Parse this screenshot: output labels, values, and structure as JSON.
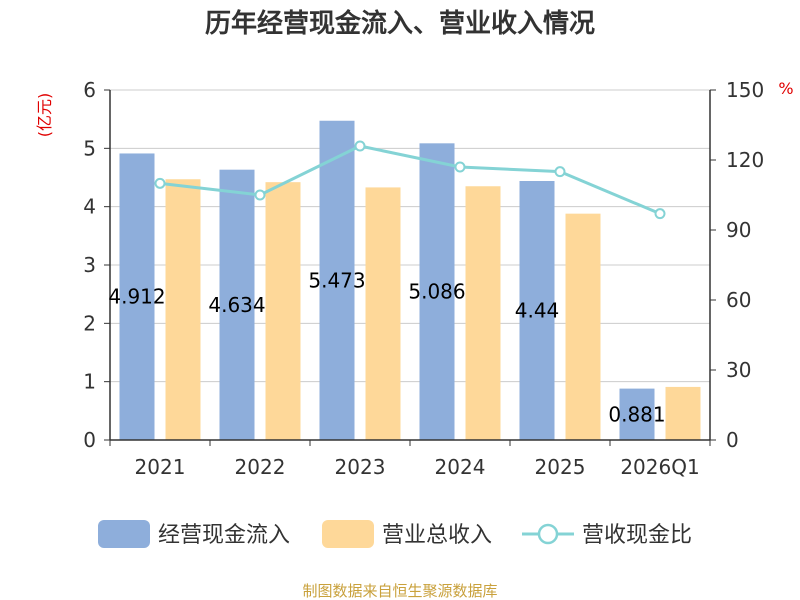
{
  "chart_data": {
    "type": "bar",
    "title": "历年经营现金流入、营业收入情况",
    "categories": [
      "2021",
      "2022",
      "2023",
      "2024",
      "2025",
      "2026Q1"
    ],
    "left_axis": {
      "unit": "(亿元)",
      "ylim": [
        0,
        6
      ],
      "ticks": [
        "0",
        "1",
        "2",
        "3",
        "4",
        "5",
        "6"
      ]
    },
    "right_axis": {
      "unit": "%",
      "ylim": [
        0,
        150
      ],
      "ticks": [
        "0",
        "30",
        "60",
        "90",
        "120",
        "150"
      ]
    },
    "series": [
      {
        "name": "经营现金流入",
        "type": "bar",
        "axis": "left",
        "color": "#8eaedb",
        "values": [
          4.912,
          4.634,
          5.473,
          5.086,
          4.44,
          0.881
        ],
        "labels": [
          "4.912",
          "4.634",
          "5.473",
          "5.086",
          "4.44",
          "0.881"
        ]
      },
      {
        "name": "营业总收入",
        "type": "bar",
        "axis": "left",
        "color": "#fed899",
        "values": [
          4.47,
          4.42,
          4.33,
          4.35,
          3.88,
          0.91
        ]
      },
      {
        "name": "营收现金比",
        "type": "line",
        "axis": "right",
        "color": "#84d3d5",
        "values": [
          110,
          105,
          126,
          117,
          115,
          97
        ]
      }
    ],
    "source": "制图数据来自恒生聚源数据库"
  }
}
